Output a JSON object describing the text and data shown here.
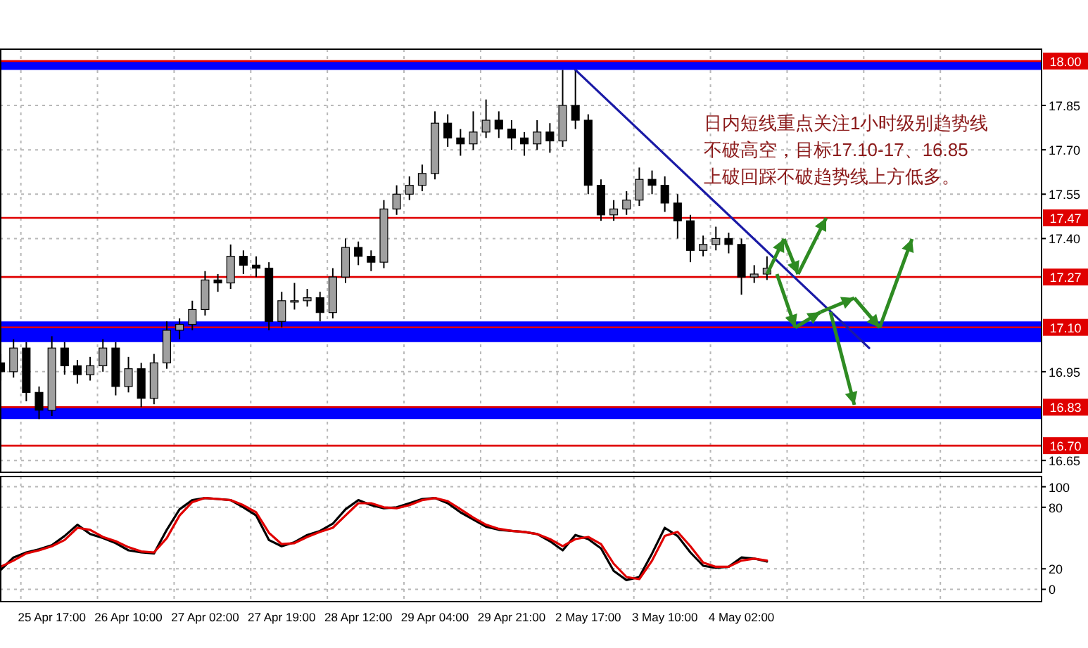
{
  "chart_data": [
    {
      "type": "candlestick",
      "categories": [
        null,
        null,
        null,
        null,
        null,
        null,
        null,
        null,
        null,
        null,
        null,
        null,
        null,
        null,
        null,
        null,
        null,
        null,
        null,
        null,
        null,
        null,
        null,
        null,
        null,
        null,
        null,
        null,
        null,
        null,
        null,
        null,
        null,
        null,
        null,
        null,
        null,
        null,
        null,
        null,
        null,
        null,
        null,
        null,
        null,
        null,
        null,
        null,
        null,
        null,
        null,
        null,
        null,
        null,
        null,
        null,
        null,
        null,
        null,
        null,
        null,
        null,
        null,
        null,
        null,
        null,
        null,
        null,
        null,
        null,
        null,
        null,
        null,
        null,
        null,
        null,
        null,
        null,
        null,
        null,
        null,
        null
      ],
      "ohlc": [
        [
          16.98,
          17.01,
          16.92,
          16.95
        ],
        [
          16.95,
          17.06,
          16.93,
          17.03
        ],
        [
          17.03,
          17.05,
          16.85,
          16.88
        ],
        [
          16.88,
          16.9,
          16.79,
          16.82
        ],
        [
          16.82,
          17.07,
          16.8,
          17.03
        ],
        [
          17.03,
          17.05,
          16.94,
          16.97
        ],
        [
          16.97,
          16.99,
          16.91,
          16.94
        ],
        [
          16.94,
          17.0,
          16.92,
          16.97
        ],
        [
          16.97,
          17.06,
          16.95,
          17.03
        ],
        [
          17.03,
          17.05,
          16.87,
          16.9
        ],
        [
          16.9,
          17.0,
          16.88,
          16.96
        ],
        [
          16.96,
          16.98,
          16.83,
          16.86
        ],
        [
          16.86,
          17.01,
          16.84,
          16.98
        ],
        [
          16.98,
          17.12,
          16.96,
          17.09
        ],
        [
          17.09,
          17.13,
          17.06,
          17.11
        ],
        [
          17.11,
          17.19,
          17.09,
          17.16
        ],
        [
          17.16,
          17.29,
          17.14,
          17.26
        ],
        [
          17.26,
          17.28,
          17.22,
          17.25
        ],
        [
          17.25,
          17.38,
          17.23,
          17.34
        ],
        [
          17.34,
          17.36,
          17.28,
          17.31
        ],
        [
          17.31,
          17.34,
          17.27,
          17.3
        ],
        [
          17.3,
          17.32,
          17.09,
          17.12
        ],
        [
          17.12,
          17.22,
          17.1,
          17.19
        ],
        [
          17.19,
          17.25,
          17.16,
          17.19
        ],
        [
          17.19,
          17.23,
          17.17,
          17.2
        ],
        [
          17.2,
          17.22,
          17.12,
          17.15
        ],
        [
          17.15,
          17.3,
          17.13,
          17.27
        ],
        [
          17.27,
          17.4,
          17.25,
          17.37
        ],
        [
          17.37,
          17.39,
          17.31,
          17.34
        ],
        [
          17.34,
          17.36,
          17.29,
          17.32
        ],
        [
          17.32,
          17.53,
          17.3,
          17.5
        ],
        [
          17.5,
          17.58,
          17.48,
          17.55
        ],
        [
          17.55,
          17.61,
          17.53,
          17.58
        ],
        [
          17.58,
          17.65,
          17.56,
          17.62
        ],
        [
          17.62,
          17.83,
          17.6,
          17.79
        ],
        [
          17.79,
          17.82,
          17.71,
          17.74
        ],
        [
          17.74,
          17.77,
          17.68,
          17.72
        ],
        [
          17.72,
          17.83,
          17.7,
          17.76
        ],
        [
          17.76,
          17.87,
          17.74,
          17.8
        ],
        [
          17.8,
          17.83,
          17.74,
          17.77
        ],
        [
          17.77,
          17.8,
          17.7,
          17.74
        ],
        [
          17.74,
          17.76,
          17.68,
          17.72
        ],
        [
          17.72,
          17.8,
          17.7,
          17.76
        ],
        [
          17.76,
          17.79,
          17.69,
          17.73
        ],
        [
          17.73,
          17.97,
          17.71,
          17.85
        ],
        [
          17.85,
          17.97,
          17.77,
          17.8
        ],
        [
          17.8,
          17.82,
          17.55,
          17.58
        ],
        [
          17.58,
          17.6,
          17.46,
          17.48
        ],
        [
          17.48,
          17.53,
          17.46,
          17.5
        ],
        [
          17.5,
          17.56,
          17.48,
          17.53
        ],
        [
          17.53,
          17.64,
          17.51,
          17.6
        ],
        [
          17.6,
          17.63,
          17.55,
          17.58
        ],
        [
          17.58,
          17.61,
          17.49,
          17.52
        ],
        [
          17.52,
          17.55,
          17.4,
          17.46
        ],
        [
          17.46,
          17.48,
          17.32,
          17.36
        ],
        [
          17.36,
          17.41,
          17.34,
          17.38
        ],
        [
          17.38,
          17.44,
          17.36,
          17.4
        ],
        [
          17.4,
          17.42,
          17.35,
          17.38
        ],
        [
          17.38,
          17.4,
          17.21,
          17.27
        ],
        [
          17.27,
          17.31,
          17.25,
          17.28
        ],
        [
          17.28,
          17.34,
          17.26,
          17.3
        ],
        null,
        null,
        null,
        null,
        null,
        null,
        null,
        null,
        null,
        null,
        null,
        null,
        null,
        null,
        null,
        null,
        null,
        null,
        null,
        null,
        null
      ],
      "series": [
        {
          "type": "line",
          "color": "#1a1aa6",
          "values": [
            null,
            null,
            null,
            null,
            null,
            null,
            null,
            null,
            null,
            null,
            null,
            null,
            null,
            null,
            null,
            null,
            null,
            null,
            null,
            null,
            null,
            null,
            null,
            null,
            null,
            null,
            null,
            null,
            null,
            null,
            null,
            null,
            null,
            null,
            null,
            null,
            null,
            null,
            null,
            null,
            null,
            null,
            null,
            null,
            null,
            17.97,
            null,
            null,
            null,
            null,
            null,
            null,
            null,
            null,
            null,
            null,
            null,
            null,
            null,
            null,
            null,
            null,
            null,
            null,
            null,
            null,
            null,
            null,
            17.03,
            null,
            null,
            null,
            null,
            null,
            null,
            null,
            null,
            null,
            null,
            null,
            null,
            null
          ]
        }
      ],
      "ylim": [
        16.61,
        18.04
      ],
      "yticks": [
        16.65,
        16.95,
        {
          "value": 17.4,
          "label": "17.40"
        },
        17.55,
        {
          "value": 17.7,
          "label": "17.70"
        },
        17.85
      ],
      "ref_lines": [
        {
          "axis": "y",
          "value": 18.0,
          "label": "18.00",
          "color": "#e00000"
        },
        {
          "axis": "y",
          "value": 17.47,
          "label": "17.47",
          "color": "#e00000"
        },
        {
          "axis": "y",
          "value": 17.27,
          "label": "17.27",
          "color": "#e00000"
        },
        {
          "axis": "y",
          "value": 17.1,
          "label": "17.10",
          "color": "#e00000"
        },
        {
          "axis": "y",
          "value": 16.83,
          "label": "16.83",
          "color": "#e00000"
        },
        {
          "axis": "y",
          "value": 16.7,
          "label": "16.70",
          "color": "#e00000"
        }
      ],
      "bands": [
        {
          "axis": "y",
          "from": 17.97,
          "to": 18.0,
          "color": "#0000ff"
        },
        {
          "axis": "y",
          "from": 17.05,
          "to": 17.12,
          "color": "#0000ff"
        },
        {
          "axis": "y",
          "from": 16.79,
          "to": 16.83,
          "color": "#0000ff"
        }
      ],
      "grid": true,
      "tick_labels": "y",
      "annotations": [
        "日内短线重点关注1小时级别趋势线",
        "不破高空，目标17.10-17、16.85",
        "上破回踩不破趋势线上方低多。"
      ]
    },
    {
      "type": "line",
      "categories": [
        null,
        null,
        null,
        null,
        "25 Apr 17:00",
        null,
        null,
        null,
        null,
        null,
        "26 Apr 10:00",
        null,
        null,
        null,
        null,
        null,
        "27 Apr 02:00",
        null,
        null,
        null,
        null,
        null,
        "27 Apr 19:00",
        null,
        null,
        null,
        null,
        null,
        "28 Apr 12:00",
        null,
        null,
        null,
        null,
        null,
        "29 Apr 04:00",
        null,
        null,
        null,
        null,
        null,
        "29 Apr 21:00",
        null,
        null,
        null,
        null,
        null,
        "2 May 17:00",
        null,
        null,
        null,
        null,
        null,
        "3 May 10:00",
        null,
        null,
        null,
        null,
        null,
        "4 May 02:00",
        null,
        null,
        null,
        null,
        null,
        null,
        null,
        null,
        null,
        null,
        null,
        null,
        null,
        null,
        null,
        null,
        null,
        null,
        null,
        null,
        null,
        null,
        null
      ],
      "series": [
        {
          "color": "#000000",
          "values": [
            19,
            31,
            36,
            39,
            43,
            52,
            63,
            54,
            50,
            45,
            38,
            36,
            35,
            58,
            78,
            87,
            89,
            88,
            87,
            80,
            72,
            48,
            42,
            46,
            53,
            57,
            64,
            78,
            87,
            82,
            79,
            80,
            84,
            88,
            89,
            84,
            75,
            68,
            61,
            58,
            57,
            56,
            54,
            47,
            38,
            53,
            49,
            40,
            18,
            9,
            12,
            35,
            60,
            52,
            36,
            23,
            21,
            22,
            31,
            30,
            27,
            null,
            null,
            null,
            null,
            null,
            null,
            null,
            null,
            null,
            null,
            null,
            null,
            null,
            null,
            null,
            null,
            null,
            null,
            null,
            null,
            null
          ]
        },
        {
          "color": "#e00000",
          "values": [
            22,
            28,
            35,
            38,
            42,
            48,
            60,
            58,
            51,
            47,
            41,
            37,
            36,
            50,
            72,
            85,
            89,
            88,
            87,
            82,
            75,
            55,
            44,
            45,
            51,
            56,
            60,
            72,
            84,
            84,
            80,
            79,
            82,
            87,
            89,
            86,
            78,
            70,
            63,
            59,
            57,
            56,
            54,
            49,
            42,
            49,
            51,
            44,
            25,
            12,
            10,
            28,
            52,
            56,
            42,
            26,
            22,
            22,
            28,
            30,
            28,
            null,
            null,
            null,
            null,
            null,
            null,
            null,
            null,
            null,
            null,
            null,
            null,
            null,
            null,
            null,
            null,
            null,
            null,
            null,
            null,
            null
          ]
        }
      ],
      "ylim": [
        -12,
        110
      ],
      "yticks": [
        0,
        20,
        80,
        100
      ],
      "grid": true
    }
  ]
}
